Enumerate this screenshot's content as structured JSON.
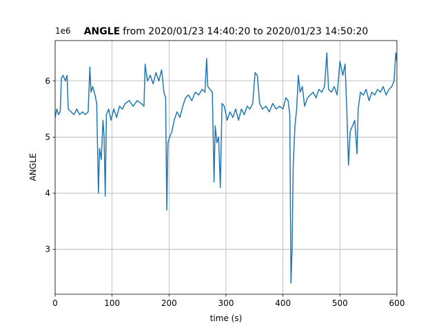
{
  "chart_data": {
    "type": "line",
    "title_parts": [
      "ANGLE",
      "from 2020/01/23 14:40:20 to 2020/01/23 14:50:20"
    ],
    "x_label": "time (s)",
    "y_label": "ANGLE",
    "y_offset_label": "1e6",
    "color": "#1f77b4",
    "grid": true,
    "xlim": [
      0,
      600
    ],
    "xticks": [
      0,
      100,
      200,
      300,
      400,
      500,
      600
    ],
    "ylim": [
      2.2,
      6.72
    ],
    "yticks": [
      3,
      4,
      5,
      6
    ],
    "x": [
      0,
      3,
      6,
      9,
      11,
      14,
      18,
      21,
      23,
      28,
      33,
      38,
      43,
      48,
      53,
      58,
      61,
      63,
      66,
      70,
      73,
      76,
      78,
      81,
      84,
      86,
      88,
      90,
      94,
      98,
      103,
      108,
      113,
      118,
      123,
      130,
      137,
      144,
      151,
      156,
      158,
      162,
      167,
      172,
      177,
      182,
      187,
      191,
      194,
      196,
      198,
      201,
      205,
      209,
      214,
      219,
      224,
      229,
      234,
      240,
      246,
      252,
      258,
      263,
      266,
      268,
      272,
      276,
      279,
      281,
      284,
      287,
      290,
      293,
      297,
      302,
      307,
      312,
      317,
      322,
      327,
      332,
      337,
      342,
      347,
      351,
      355,
      359,
      364,
      370,
      376,
      382,
      388,
      394,
      400,
      405,
      409,
      412,
      414,
      416,
      418,
      421,
      424,
      427,
      430,
      434,
      438,
      443,
      448,
      453,
      458,
      463,
      468,
      473,
      477,
      480,
      485,
      490,
      495,
      500,
      505,
      509,
      512,
      515,
      518,
      522,
      526,
      530,
      532,
      536,
      541,
      546,
      551,
      556,
      561,
      566,
      571,
      576,
      581,
      586,
      591,
      595,
      598,
      600
    ],
    "values": [
      5.35,
      5.5,
      5.4,
      5.45,
      6.05,
      6.1,
      6.0,
      6.1,
      5.5,
      5.45,
      5.4,
      5.5,
      5.4,
      5.45,
      5.4,
      5.45,
      6.25,
      5.8,
      5.9,
      5.75,
      5.6,
      4.0,
      4.8,
      4.6,
      5.3,
      5.0,
      3.95,
      5.4,
      5.5,
      5.3,
      5.5,
      5.35,
      5.55,
      5.5,
      5.6,
      5.65,
      5.55,
      5.65,
      5.6,
      5.55,
      6.3,
      6.0,
      6.1,
      5.95,
      6.15,
      6.0,
      6.2,
      5.8,
      5.7,
      3.7,
      4.9,
      5.0,
      5.1,
      5.3,
      5.45,
      5.35,
      5.55,
      5.7,
      5.75,
      5.65,
      5.8,
      5.75,
      5.85,
      5.8,
      6.4,
      5.9,
      5.85,
      5.8,
      4.2,
      5.2,
      4.9,
      5.0,
      4.1,
      5.6,
      5.55,
      5.3,
      5.45,
      5.35,
      5.5,
      5.3,
      5.5,
      5.4,
      5.55,
      5.5,
      5.6,
      6.15,
      6.1,
      5.6,
      5.5,
      5.55,
      5.45,
      5.6,
      5.5,
      5.55,
      5.5,
      5.7,
      5.65,
      5.4,
      2.4,
      3.0,
      4.5,
      5.2,
      5.5,
      6.1,
      5.8,
      5.9,
      5.55,
      5.7,
      5.75,
      5.8,
      5.7,
      5.85,
      5.8,
      5.9,
      6.5,
      5.85,
      5.8,
      5.9,
      5.75,
      6.35,
      6.1,
      6.3,
      5.5,
      4.5,
      5.1,
      5.2,
      5.3,
      4.7,
      5.5,
      5.8,
      5.75,
      5.85,
      5.65,
      5.8,
      5.75,
      5.85,
      5.8,
      5.9,
      5.75,
      5.85,
      5.9,
      6.0,
      6.5,
      6.35
    ]
  }
}
